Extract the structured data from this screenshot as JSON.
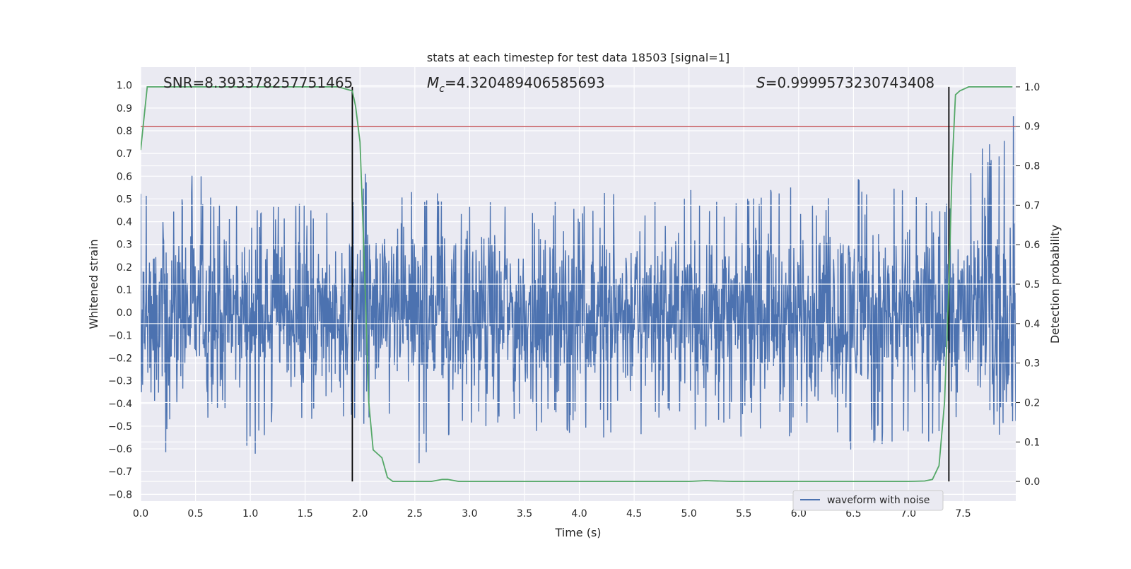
{
  "chart_data": {
    "type": "line",
    "title": "stats at each timestep for test data 18503 [signal=1]",
    "xlabel": "Time (s)",
    "ylabel_left": "Whitened strain",
    "ylabel_right": "Detection probability",
    "xlim": [
      0.0,
      7.98
    ],
    "ylim_left": [
      -0.83,
      1.08
    ],
    "ylim_right": [
      -0.05,
      1.05
    ],
    "x_ticks": [
      "0.0",
      "0.5",
      "1.0",
      "1.5",
      "2.0",
      "2.5",
      "3.0",
      "3.5",
      "4.0",
      "4.5",
      "5.0",
      "5.5",
      "6.0",
      "6.5",
      "7.0",
      "7.5"
    ],
    "y_left_ticks": [
      "1.0",
      "0.9",
      "0.8",
      "0.7",
      "0.6",
      "0.5",
      "0.4",
      "0.3",
      "0.2",
      "0.1",
      "0.0",
      "−0.1",
      "−0.2",
      "−0.3",
      "−0.4",
      "−0.5",
      "−0.6",
      "−0.7",
      "−0.8"
    ],
    "y_right_ticks": [
      "1.0",
      "0.9",
      "0.8",
      "0.7",
      "0.6",
      "0.5",
      "0.4",
      "0.3",
      "0.2",
      "0.1",
      "0.0"
    ],
    "grid": true,
    "legend": {
      "placement": "lower-right",
      "entries": [
        "waveform with noise"
      ]
    },
    "annotations": {
      "snr": "SNR=8.393378257751465",
      "mc_symbol": "M",
      "mc_subscript": "c",
      "mc_value": "=4.320489406585693",
      "s_symbol": "S",
      "s_value": "=0.9999573230743408"
    },
    "threshold": {
      "value": 0.9,
      "axis": "right",
      "color": "#c44e52"
    },
    "vertical_markers": {
      "x": [
        1.93,
        7.37
      ],
      "color": "#000000"
    },
    "series": [
      {
        "name": "waveform with noise",
        "axis": "left",
        "color": "#4c72b0",
        "description_note": "dense noisy strain; envelope values below",
        "envelope_x": [
          0.0,
          0.25,
          0.5,
          0.75,
          1.0,
          1.25,
          1.5,
          1.75,
          2.0,
          2.25,
          2.5,
          2.75,
          3.0,
          3.25,
          3.5,
          3.75,
          4.0,
          4.25,
          4.5,
          4.75,
          5.0,
          5.25,
          5.5,
          5.75,
          6.0,
          6.25,
          6.5,
          6.75,
          7.0,
          7.25,
          7.5,
          7.75,
          7.98
        ],
        "envelope_hi": [
          0.64,
          0.45,
          0.63,
          0.5,
          0.45,
          0.5,
          0.48,
          0.46,
          0.64,
          0.5,
          0.52,
          0.55,
          0.5,
          0.55,
          0.52,
          0.5,
          0.48,
          0.55,
          0.5,
          0.5,
          0.55,
          0.5,
          0.5,
          0.55,
          0.6,
          0.55,
          0.68,
          0.55,
          0.55,
          0.5,
          0.55,
          0.82,
          1.0
        ],
        "envelope_lo": [
          -0.35,
          -0.65,
          -0.55,
          -0.45,
          -0.67,
          -0.45,
          -0.48,
          -0.45,
          -0.5,
          -0.5,
          -0.72,
          -0.55,
          -0.55,
          -0.5,
          -0.55,
          -0.5,
          -0.55,
          -0.55,
          -0.62,
          -0.5,
          -0.55,
          -0.55,
          -0.55,
          -0.5,
          -0.58,
          -0.6,
          -0.63,
          -0.6,
          -0.6,
          -0.62,
          -0.55,
          -0.72,
          -0.4
        ]
      },
      {
        "name": "detection probability",
        "axis": "right",
        "color": "#55a868",
        "x": [
          0.0,
          0.06,
          0.12,
          0.5,
          1.0,
          1.5,
          1.75,
          1.8,
          1.93,
          1.96,
          2.0,
          2.04,
          2.08,
          2.12,
          2.16,
          2.2,
          2.25,
          2.3,
          2.4,
          2.5,
          2.65,
          2.75,
          2.8,
          2.9,
          3.2,
          3.6,
          4.0,
          4.5,
          5.0,
          5.15,
          5.4,
          6.0,
          6.5,
          6.8,
          7.0,
          7.15,
          7.22,
          7.28,
          7.33,
          7.37,
          7.4,
          7.43,
          7.47,
          7.55,
          7.65,
          7.8,
          7.95
        ],
        "y": [
          0.84,
          1.0,
          1.0,
          1.0,
          1.0,
          1.0,
          1.0,
          1.0,
          0.99,
          0.95,
          0.86,
          0.55,
          0.2,
          0.08,
          0.07,
          0.06,
          0.01,
          0.0,
          0.0,
          0.0,
          0.0,
          0.005,
          0.005,
          0.0,
          0.0,
          0.0,
          0.0,
          0.0,
          0.0,
          0.002,
          0.0,
          0.0,
          0.0,
          0.0,
          0.0,
          0.001,
          0.005,
          0.04,
          0.2,
          0.5,
          0.8,
          0.98,
          0.99,
          1.0,
          1.0,
          1.0,
          1.0
        ]
      }
    ]
  }
}
